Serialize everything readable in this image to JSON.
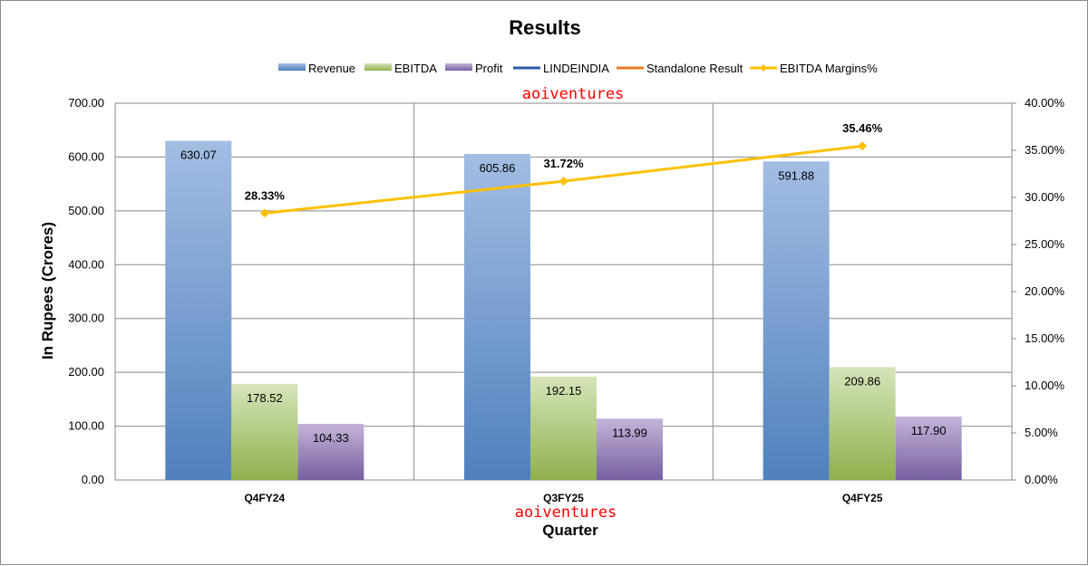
{
  "chart_data": {
    "type": "bar",
    "title": "Results",
    "categories": [
      "Q4FY24",
      "Q3FY25",
      "Q4FY25"
    ],
    "series": [
      {
        "name": "Revenue",
        "values": [
          630.07,
          605.86,
          591.88
        ],
        "color": "#5b87c6"
      },
      {
        "name": "EBITDA",
        "values": [
          178.52,
          192.15,
          209.86
        ],
        "color": "#9bbb59"
      },
      {
        "name": "Profit",
        "values": [
          104.33,
          113.99,
          117.9
        ],
        "color": "#8064a2"
      }
    ],
    "line_series": [
      {
        "name": "EBITDA Margins%",
        "values": [
          28.33,
          31.72,
          35.46
        ],
        "color": "#ffc000",
        "axis": "secondary"
      }
    ],
    "legend_only_series": [
      {
        "name": "LINDEINDIA",
        "color": "#2e5ca8"
      },
      {
        "name": "Standalone Result",
        "color": "#e97826"
      }
    ],
    "legend_order": [
      "Revenue",
      "EBITDA",
      "Profit",
      "LINDEINDIA",
      "Standalone Result",
      "EBITDA Margins%"
    ],
    "xlabel": "Quarter",
    "ylabel": "In Rupees (Crores)",
    "ylim": [
      0,
      700
    ],
    "yticks": [
      "0.00",
      "100.00",
      "200.00",
      "300.00",
      "400.00",
      "500.00",
      "600.00",
      "700.00"
    ],
    "y2lim": [
      0,
      40
    ],
    "y2ticks": [
      "0.00%",
      "5.00%",
      "10.00%",
      "15.00%",
      "20.00%",
      "25.00%",
      "30.00%",
      "35.00%",
      "40.00%"
    ],
    "bar_labels": [
      [
        "630.07",
        "178.52",
        "104.33"
      ],
      [
        "605.86",
        "192.15",
        "113.99"
      ],
      [
        "591.88",
        "209.86",
        "117.90"
      ]
    ],
    "line_labels": [
      "28.33%",
      "31.72%",
      "35.46%"
    ],
    "grid": true,
    "legend_position": "top"
  },
  "watermark": {
    "top": "aoiventures",
    "bottom": "aoiventures"
  }
}
